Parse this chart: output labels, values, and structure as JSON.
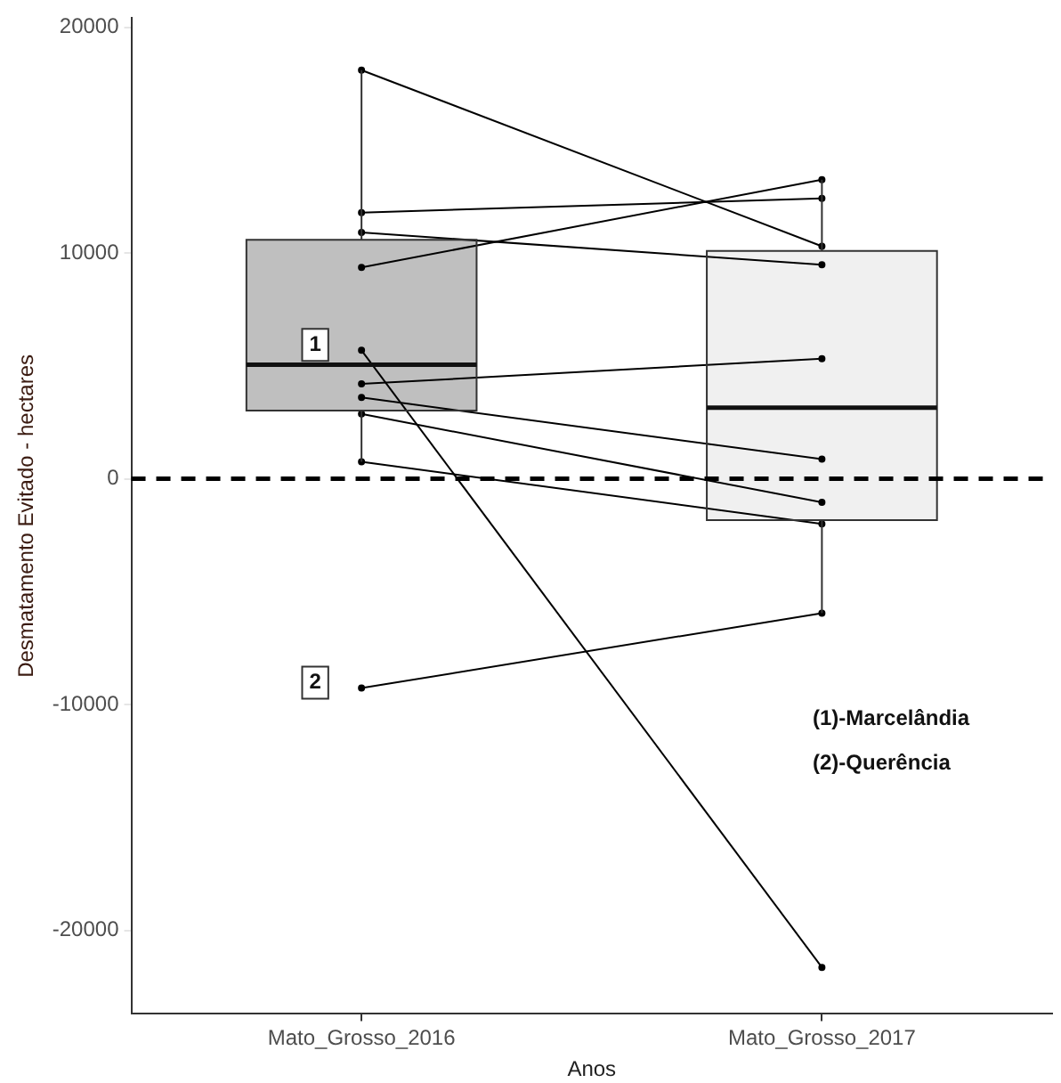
{
  "chart_data": {
    "type": "box",
    "xlabel": "Anos",
    "ylabel": "Desmatamento Evitado - hectares",
    "categories": [
      "Mato_Grosso_2016",
      "Mato_Grosso_2017"
    ],
    "boxes": [
      {
        "low": 750,
        "q1": 3020,
        "median": 5050,
        "q3": 10580,
        "high": 18100
      },
      {
        "low": -5950,
        "q1": -1830,
        "median": 3150,
        "q3": 10090,
        "high": 13250
      }
    ],
    "colors": [
      "#bfbfbf",
      "#f0f0f0"
    ],
    "series": [
      {
        "type": "line",
        "color": "#000000",
        "values": [
          18100,
          10300
        ]
      },
      {
        "type": "line",
        "color": "#000000",
        "values": [
          11790,
          12420
        ]
      },
      {
        "type": "line",
        "color": "#000000",
        "values": [
          10910,
          9480
        ]
      },
      {
        "type": "line",
        "color": "#000000",
        "values": [
          9360,
          13250
        ]
      },
      {
        "type": "line",
        "color": "#000000",
        "values": [
          5690,
          -21640
        ]
      },
      {
        "type": "line",
        "color": "#000000",
        "values": [
          4200,
          5320
        ]
      },
      {
        "type": "line",
        "color": "#000000",
        "values": [
          3600,
          870
        ]
      },
      {
        "type": "line",
        "color": "#000000",
        "values": [
          2870,
          -1040
        ]
      },
      {
        "type": "line",
        "color": "#000000",
        "values": [
          750,
          -2000
        ]
      },
      {
        "type": "line",
        "color": "#000000",
        "values": [
          -9270,
          -5950
        ]
      }
    ],
    "marker": "circle",
    "ylim": [
      -23700,
      20400
    ],
    "yticks": [
      -20000,
      -10000,
      0,
      10000,
      20000
    ],
    "ref_lines": [
      {
        "axis": "y",
        "value": 0,
        "color": "#000000",
        "line_style": "dashed"
      }
    ],
    "annotations": [
      {
        "text": "1",
        "x": "Mato_Grosso_2016",
        "y": 5690
      },
      {
        "text": "2",
        "x": "Mato_Grosso_2016",
        "y": -9270
      },
      "(1)-Marcelândia",
      "(2)-Querência"
    ],
    "grid": false,
    "legend": false
  }
}
